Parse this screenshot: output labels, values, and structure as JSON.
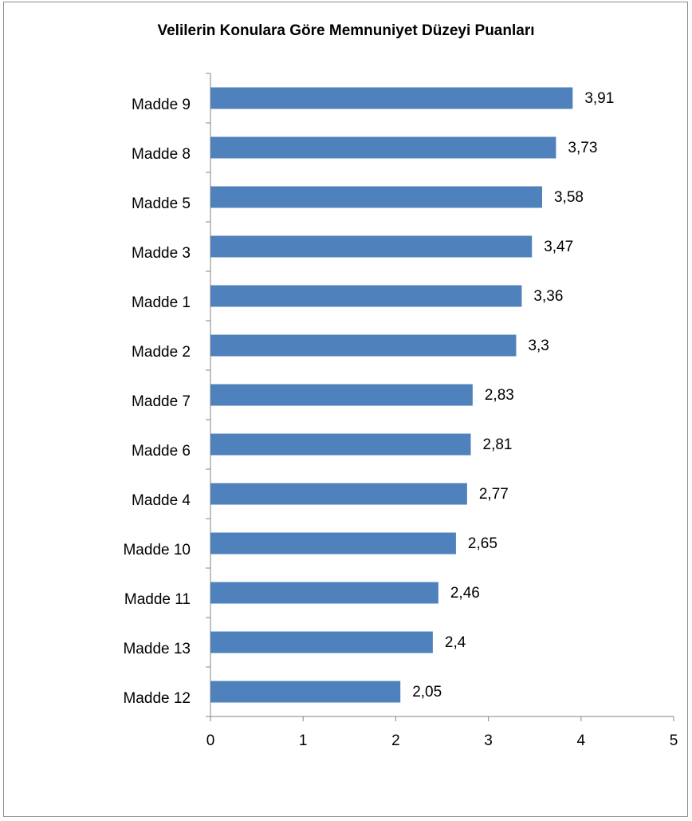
{
  "chart_data": {
    "type": "bar",
    "orientation": "horizontal",
    "title": "Velilerin Konulara Göre Memnuniyet Düzeyi Puanları",
    "categories": [
      "Madde 9",
      "Madde 8",
      "Madde 5",
      "Madde 3",
      "Madde 1",
      "Madde 2",
      "Madde 7",
      "Madde 6",
      "Madde 4",
      "Madde 10",
      "Madde 11",
      "Madde 13",
      "Madde 12"
    ],
    "values": [
      3.91,
      3.73,
      3.58,
      3.47,
      3.36,
      3.3,
      2.83,
      2.81,
      2.77,
      2.65,
      2.46,
      2.4,
      2.05
    ],
    "value_labels": [
      "3,91",
      "3,73",
      "3,58",
      "3,47",
      "3,36",
      "3,3",
      "2,83",
      "2,81",
      "2,77",
      "2,65",
      "2,46",
      "2,4",
      "2,05"
    ],
    "xlim": [
      0,
      5
    ],
    "x_ticks": [
      "0",
      "1",
      "2",
      "3",
      "4",
      "5"
    ],
    "xlabel": "",
    "ylabel": "",
    "grid": false,
    "legend": "none",
    "bar_color": "#4f81bd"
  }
}
